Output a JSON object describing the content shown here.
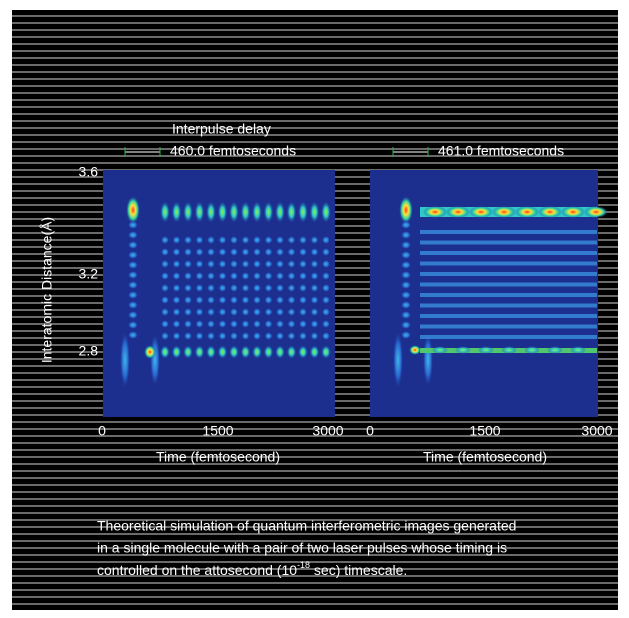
{
  "header": {
    "title": "Interpulse delay"
  },
  "y_axis": {
    "label": "Interatomic Distance(Å)",
    "ticks": [
      "3.6",
      "3.2",
      "2.8"
    ]
  },
  "panels": [
    {
      "delay": "460.0 femtoseconds",
      "x_ticks": [
        "0",
        "1500",
        "3000"
      ],
      "x_label": "Time (femtosecond)"
    },
    {
      "delay": "461.0 femtoseconds",
      "x_ticks": [
        "0",
        "1500",
        "3000"
      ],
      "x_label": "Time (femtosecond)"
    }
  ],
  "caption": {
    "lines": [
      "Theoretical simulation of quantum interferometric images generated",
      "in a single molecule with a pair of two laser pulses whose timing is",
      "controlled on the attosecond (10"
    ],
    "superscript": "-18",
    "tail": " sec) timescale."
  }
}
